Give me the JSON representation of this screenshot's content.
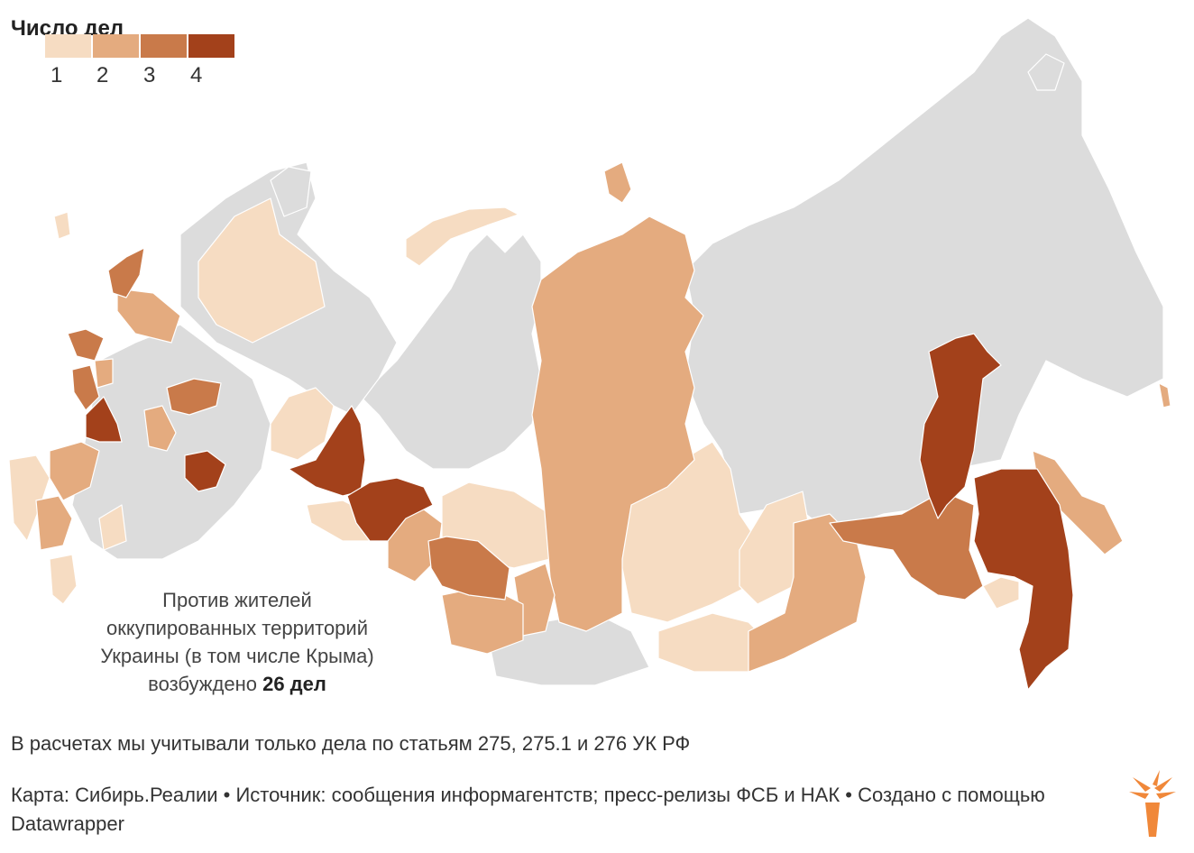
{
  "legend": {
    "title": "Число дел",
    "items": [
      {
        "label": "1",
        "color": "#f6dcc2"
      },
      {
        "label": "2",
        "color": "#e4ab7f"
      },
      {
        "label": "3",
        "color": "#c97a4a"
      },
      {
        "label": "4",
        "color": "#a3411b"
      }
    ],
    "no_data_color": "#dcdcdc"
  },
  "annotation": {
    "line1": "Против жителей",
    "line2": "оккупированных территорий",
    "line3": "Украины (в том числе Крыма)",
    "line4_prefix": "возбуждено ",
    "line4_bold": "26 дел"
  },
  "note": "В расчетах мы учитывали только дела по статьям 275, 275.1 и 276 УК РФ",
  "source": "Карта: Сибирь.Реалии • Источник: сообщения информагентств; пресс-релизы ФСБ и НАК • Создано с помощью Datawrapper",
  "logo_icon": "torch-icon"
}
